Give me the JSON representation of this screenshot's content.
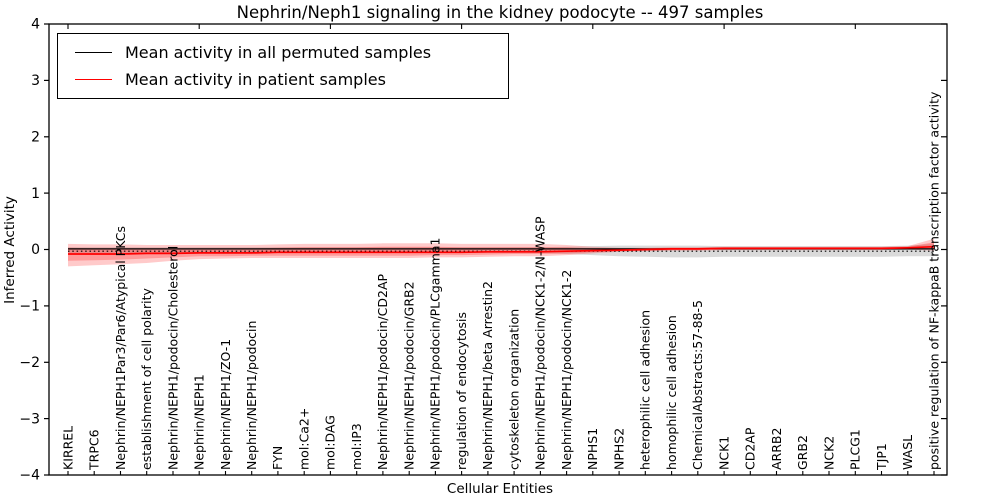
{
  "figure": {
    "title": "Nephrin/Neph1 signaling in the kidney podocyte -- 497 samples",
    "legend": [
      {
        "label": "Mean activity in all permuted samples",
        "color": "#000000"
      },
      {
        "label": "Mean activity in patient samples",
        "color": "#ff0000"
      }
    ]
  },
  "chart_data": {
    "type": "line",
    "title": "Nephrin/Neph1 signaling in the kidney podocyte -- 497 samples",
    "xlabel": "Cellular Entities",
    "ylabel": "Inferred Activity",
    "ylim": [
      -4,
      4
    ],
    "yticks": [
      4,
      3,
      2,
      1,
      0,
      -1,
      -2,
      -3,
      -4
    ],
    "grid": false,
    "legend_position": "upper left",
    "categories": [
      "KIRREL",
      "TRPC6",
      "Nephrin/NEPH1Par3/Par6/Atypical PKCs",
      "establishment of cell polarity",
      "Nephrin/NEPH1/podocin/Cholesterol",
      "Nephrin/NEPH1",
      "Nephrin/NEPH1/ZO-1",
      "Nephrin/NEPH1/podocin",
      "FYN",
      "mol:Ca2+",
      "mol:DAG",
      "mol:IP3",
      "Nephrin/NEPH1/podocin/CD2AP",
      "Nephrin/NEPH1/podocin/GRB2",
      "Nephrin/NEPH1/podocin/PLCgamma1",
      "regulation of endocytosis",
      "Nephrin/NEPH1/beta Arrestin2",
      "cytoskeleton organization",
      "Nephrin/NEPH1/podocin/NCK1-2/N-WASP",
      "Nephrin/NEPH1/podocin/NCK1-2",
      "NPHS1",
      "NPHS2",
      "heterophilic cell adhesion",
      "homophilic cell adhesion",
      "ChemicalAbstracts:57-88-5",
      "NCK1",
      "CD2AP",
      "ARRB2",
      "GRB2",
      "NCK2",
      "PLCG1",
      "TJP1",
      "WASL",
      "positive regulation of NF-kappaB transcription factor activity"
    ],
    "series": [
      {
        "name": "Mean activity in all permuted samples",
        "color": "#000000",
        "values": [
          0.01,
          0.01,
          0.01,
          0.01,
          0.01,
          0.01,
          0.01,
          0.01,
          0.01,
          0.01,
          0.01,
          0.01,
          0.01,
          0.01,
          0.01,
          0.01,
          0.01,
          0.01,
          0.01,
          0.01,
          0.01,
          0.01,
          0.01,
          0.01,
          0.01,
          0.01,
          0.01,
          0.01,
          0.01,
          0.01,
          0.01,
          0.01,
          0.01,
          0.01
        ]
      },
      {
        "name": "Mean activity in patient samples",
        "color": "#ff0000",
        "values": [
          -0.08,
          -0.08,
          -0.08,
          -0.07,
          -0.07,
          -0.06,
          -0.06,
          -0.06,
          -0.05,
          -0.05,
          -0.05,
          -0.05,
          -0.05,
          -0.05,
          -0.05,
          -0.05,
          -0.04,
          -0.04,
          -0.04,
          -0.03,
          -0.02,
          -0.01,
          0,
          0.01,
          0.01,
          0.02,
          0.02,
          0.02,
          0.02,
          0.02,
          0.02,
          0.02,
          0.03,
          0.05
        ]
      }
    ],
    "bands": [
      {
        "name": "permuted-samples-range",
        "color": "#8c8c8c",
        "opacity": 0.32,
        "upper": [
          0.04,
          0.04,
          0.04,
          0.04,
          0.04,
          0.04,
          0.04,
          0.04,
          0.04,
          0.04,
          0.04,
          0.04,
          0.04,
          0.04,
          0.04,
          0.04,
          0.04,
          0.04,
          0.04,
          0.05,
          0.06,
          0.07,
          0.07,
          0.07,
          0.07,
          0.06,
          0.06,
          0.06,
          0.06,
          0.06,
          0.06,
          0.06,
          0.07,
          0.1
        ],
        "lower": [
          -0.06,
          -0.06,
          -0.06,
          -0.06,
          -0.06,
          -0.06,
          -0.06,
          -0.06,
          -0.06,
          -0.06,
          -0.06,
          -0.06,
          -0.06,
          -0.06,
          -0.06,
          -0.06,
          -0.06,
          -0.06,
          -0.06,
          -0.08,
          -0.1,
          -0.12,
          -0.13,
          -0.14,
          -0.14,
          -0.13,
          -0.13,
          -0.13,
          -0.13,
          -0.13,
          -0.13,
          -0.13,
          -0.12,
          -0.12
        ]
      },
      {
        "name": "patient-samples-range-outer",
        "color": "#ff2020",
        "opacity": 0.24,
        "upper": [
          0.1,
          0.09,
          0.09,
          0.08,
          0.08,
          0.08,
          0.08,
          0.08,
          0.09,
          0.1,
          0.1,
          0.1,
          0.11,
          0.11,
          0.11,
          0.1,
          0.1,
          0.1,
          0.1,
          0.08,
          0.05,
          0.03,
          0.03,
          0.04,
          0.04,
          0.05,
          0.05,
          0.05,
          0.05,
          0.05,
          0.05,
          0.05,
          0.06,
          0.19
        ],
        "lower": [
          -0.3,
          -0.28,
          -0.26,
          -0.24,
          -0.2,
          -0.17,
          -0.16,
          -0.15,
          -0.15,
          -0.15,
          -0.15,
          -0.15,
          -0.15,
          -0.15,
          -0.14,
          -0.14,
          -0.13,
          -0.12,
          -0.12,
          -0.1,
          -0.07,
          -0.04,
          -0.03,
          -0.02,
          -0.02,
          -0.01,
          -0.01,
          -0.01,
          -0.01,
          -0.01,
          -0.01,
          -0.01,
          0.0,
          -0.02
        ]
      },
      {
        "name": "patient-samples-range-inner",
        "color": "#ff2020",
        "opacity": 0.28,
        "upper": [
          0.03,
          0.02,
          0.02,
          0.02,
          0.02,
          0.02,
          0.02,
          0.02,
          0.03,
          0.04,
          0.04,
          0.04,
          0.05,
          0.05,
          0.05,
          0.04,
          0.04,
          0.04,
          0.04,
          0.04,
          0.02,
          0.01,
          0.02,
          0.03,
          0.03,
          0.04,
          0.04,
          0.04,
          0.04,
          0.04,
          0.04,
          0.04,
          0.05,
          0.13
        ],
        "lower": [
          -0.2,
          -0.19,
          -0.18,
          -0.16,
          -0.14,
          -0.12,
          -0.12,
          -0.11,
          -0.11,
          -0.11,
          -0.11,
          -0.11,
          -0.11,
          -0.11,
          -0.1,
          -0.1,
          -0.09,
          -0.08,
          -0.08,
          -0.07,
          -0.05,
          -0.03,
          -0.02,
          -0.01,
          -0.01,
          0.0,
          0.0,
          0.0,
          0.0,
          0.0,
          0.0,
          0.0,
          0.01,
          0.01
        ]
      }
    ],
    "reference_line": {
      "value": -0.03,
      "style": "dotted",
      "color": "#000000"
    }
  }
}
